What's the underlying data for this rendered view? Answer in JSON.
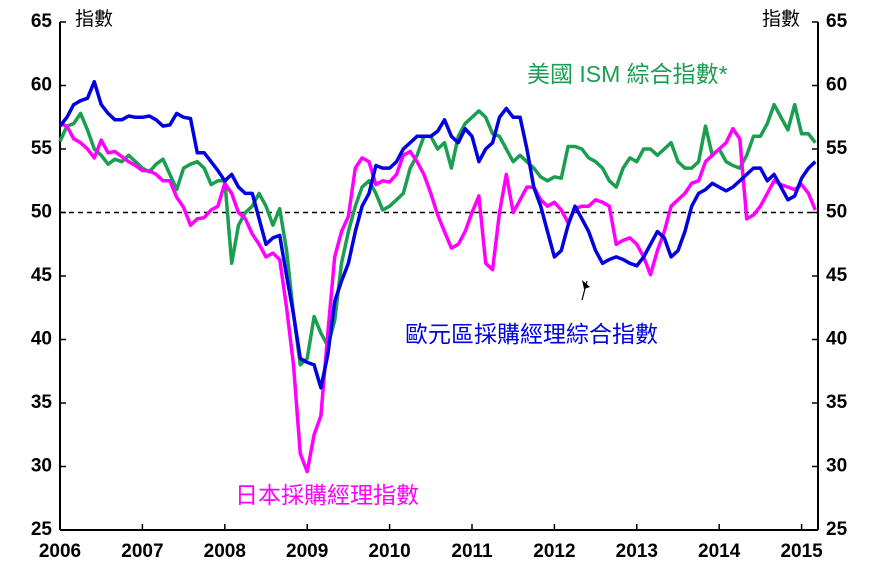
{
  "chart_data": {
    "type": "line",
    "y_axis_label": "指數",
    "y2_axis_label": "指數",
    "categories": [
      "2006",
      null,
      null,
      null,
      null,
      null,
      null,
      null,
      null,
      null,
      null,
      null,
      "2007",
      null,
      null,
      null,
      null,
      null,
      null,
      null,
      null,
      null,
      null,
      null,
      "2008",
      null,
      null,
      null,
      null,
      null,
      null,
      null,
      null,
      null,
      null,
      null,
      "2009",
      null,
      null,
      null,
      null,
      null,
      null,
      null,
      null,
      null,
      null,
      null,
      "2010",
      null,
      null,
      null,
      null,
      null,
      null,
      null,
      null,
      null,
      null,
      null,
      "2011",
      null,
      null,
      null,
      null,
      null,
      null,
      null,
      null,
      null,
      null,
      null,
      "2012",
      null,
      null,
      null,
      null,
      null,
      null,
      null,
      null,
      null,
      null,
      null,
      "2013",
      null,
      null,
      null,
      null,
      null,
      null,
      null,
      null,
      null,
      null,
      null,
      "2014",
      null,
      null,
      null,
      null,
      null,
      null,
      null,
      null,
      null,
      null,
      null,
      "2015",
      null,
      null
    ],
    "ylim": [
      25,
      65
    ],
    "yticks": [
      25,
      30,
      35,
      40,
      45,
      50,
      55,
      60,
      65
    ],
    "y2lim": [
      25,
      65
    ],
    "y2ticks": [
      25,
      30,
      35,
      40,
      45,
      50,
      55,
      60,
      65
    ],
    "reference_line": 50,
    "series": [
      {
        "name": "美國 ISM 綜合指數*",
        "color": "#1a9e50",
        "values": [
          55.6,
          56.8,
          57.0,
          57.8,
          56.5,
          55.0,
          54.5,
          53.8,
          54.2,
          54.0,
          54.5,
          54.0,
          53.5,
          53.2,
          53.8,
          54.2,
          53.0,
          51.8,
          53.5,
          53.8,
          54.0,
          53.5,
          52.2,
          52.5,
          52.5,
          46.0,
          49.0,
          50.0,
          50.5,
          51.5,
          50.5,
          49.0,
          50.3,
          47.0,
          42.0,
          38.0,
          38.5,
          41.8,
          40.5,
          39.5,
          41.5,
          46.0,
          48.5,
          50.5,
          52.0,
          52.5,
          51.5,
          50.2,
          50.5,
          51.0,
          51.5,
          53.5,
          54.5,
          56.0,
          56.0,
          55.0,
          55.5,
          53.5,
          56.0,
          57.0,
          57.5,
          58.0,
          57.5,
          56.2,
          56.0,
          55.0,
          54.0,
          54.5,
          54.0,
          53.5,
          52.8,
          52.5,
          52.8,
          52.7,
          55.2,
          55.2,
          55.0,
          54.3,
          54.0,
          53.5,
          52.5,
          52.0,
          53.5,
          54.3,
          54.0,
          55.0,
          55.0,
          54.5,
          55.0,
          55.5,
          54.0,
          53.5,
          53.5,
          54.0,
          56.8,
          54.5,
          55.0,
          54.0,
          53.7,
          53.5,
          54.5,
          56.0,
          56.0,
          57.0,
          58.5,
          57.5,
          56.5,
          58.5,
          56.2,
          56.2,
          55.5
        ]
      },
      {
        "name": "歐元區採購經理綜合指數",
        "color": "#0000e0",
        "values": [
          56.8,
          57.5,
          58.5,
          58.8,
          59.0,
          60.3,
          58.5,
          57.8,
          57.3,
          57.3,
          57.6,
          57.5,
          57.5,
          57.6,
          57.3,
          56.8,
          56.9,
          57.8,
          57.5,
          57.4,
          54.7,
          54.7,
          54.0,
          53.3,
          52.5,
          53.0,
          52.0,
          51.5,
          51.5,
          49.5,
          47.5,
          48.0,
          48.2,
          45.0,
          42.0,
          38.5,
          38.2,
          38.0,
          36.2,
          38.8,
          43.0,
          44.6,
          46.0,
          48.5,
          50.5,
          51.5,
          53.7,
          53.5,
          53.5,
          54.0,
          55.0,
          55.5,
          56.0,
          56.0,
          56.0,
          56.4,
          57.3,
          56.0,
          55.5,
          56.6,
          56.0,
          54.0,
          55.0,
          55.5,
          57.5,
          58.2,
          57.5,
          57.5,
          55.0,
          52.0,
          50.5,
          48.5,
          46.5,
          47.0,
          49.0,
          50.5,
          49.5,
          48.5,
          47.0,
          46.0,
          46.3,
          46.5,
          46.3,
          46.0,
          45.8,
          46.5,
          47.5,
          48.5,
          48.0,
          46.5,
          47.0,
          48.5,
          50.5,
          51.5,
          51.8,
          52.3,
          52.0,
          51.7,
          52.0,
          52.5,
          53.0,
          53.5,
          53.5,
          52.5,
          53.0,
          52.0,
          51.0,
          51.3,
          52.7,
          53.5,
          54.0
        ]
      },
      {
        "name": "日本採購經理指數",
        "color": "#ff00ff",
        "values": [
          57.0,
          56.8,
          55.8,
          55.5,
          55.0,
          54.3,
          55.7,
          54.7,
          54.8,
          54.4,
          54.0,
          53.7,
          53.3,
          53.3,
          53.0,
          52.5,
          52.5,
          51.2,
          50.4,
          49.0,
          49.5,
          49.6,
          50.2,
          50.5,
          52.3,
          51.5,
          50.0,
          49.5,
          48.3,
          47.5,
          46.5,
          46.8,
          46.3,
          42.5,
          38.0,
          31.0,
          29.6,
          32.5,
          34.0,
          40.5,
          46.5,
          48.5,
          49.7,
          53.5,
          54.3,
          54.0,
          52.2,
          52.5,
          52.4,
          53.0,
          54.5,
          54.8,
          54.0,
          53.0,
          51.5,
          49.8,
          48.5,
          47.2,
          47.5,
          48.5,
          50.0,
          51.3,
          46.0,
          45.5,
          50.0,
          53.0,
          50.0,
          51.0,
          52.0,
          52.0,
          51.0,
          50.5,
          50.8,
          50.2,
          49.2,
          50.3,
          50.5,
          50.5,
          51.0,
          50.8,
          50.5,
          47.5,
          47.8,
          48.0,
          47.5,
          46.5,
          45.1,
          47.0,
          48.5,
          50.5,
          51.0,
          51.5,
          52.3,
          52.5,
          54.0,
          54.5,
          55.0,
          55.5,
          56.6,
          55.8,
          49.5,
          49.8,
          50.5,
          51.5,
          52.5,
          52.2,
          52.0,
          51.8,
          52.2,
          51.5,
          50.2
        ]
      }
    ]
  }
}
